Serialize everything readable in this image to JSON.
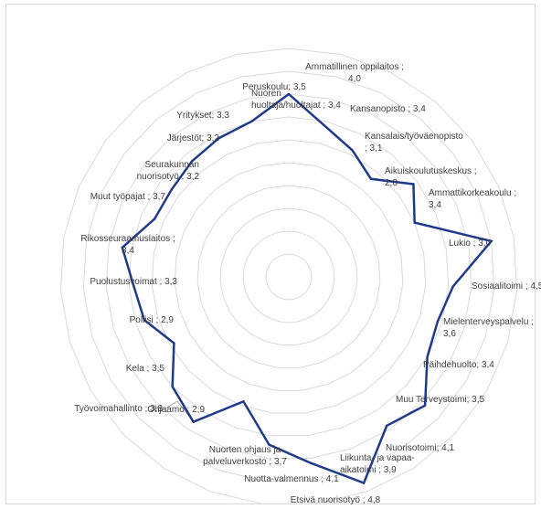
{
  "chart_data": {
    "type": "radar",
    "title": "",
    "rmin": 0,
    "rmax": 5,
    "ring_step": 0.5,
    "line_color": "#1f3a8a",
    "grid_color": "#d9d9d9",
    "categories": [
      "Ammatillinen oppilaitos ; 4,0",
      "Kansanopisto ; 3,4",
      "Kansalais/työväenopisto ; 3,1",
      "Aikuiskoulutuskeskus ; 2,8",
      "Ammattikorkeakoulu ; 3,4",
      "Lukio ; 3,0",
      "Sosiaalitoimi ; 4,5",
      "Mielenterveyspalvelu ; 3,6",
      "Päihdehuolto; 3,4",
      "Muu Terveystoimi; 3,5",
      "Nuorisotoimi; 4,1",
      "Liikunta- ja vapaa-aikatoimi ; 3,9",
      "Etsivä nuorisotyö ; 4,8",
      "Nuotta-valmennus ; 4,1",
      "Nuorten ohjaus ja palveluverkosto ; 3,7",
      "Ohjaamo ; 2,9",
      "Työvoimahallinto ; 3,8",
      "Kela ; 3,5",
      "Poliisi ; 2,9",
      "Puolustusvoimat ; 3,3",
      "Rikosseuraamuslaitos ; 3,4",
      "Muut työpajat ; 3,7",
      "Seurakunnan nuorisotyö ; 3,2",
      "Järjestöt; 3,2",
      "Yritykset; 3,3",
      "Nuoren huoltaja/huoltajat ; 3,4",
      "Peruskoulu; 3,5"
    ],
    "label_lines": [
      [
        "Ammatillinen oppilaitos ;",
        "4,0"
      ],
      [
        "Kansanopisto ; 3,4"
      ],
      [
        "Kansalais/työväenopisto",
        "; 3,1"
      ],
      [
        "Aikuiskoulutuskeskus ;",
        "2,8"
      ],
      [
        "Ammattikorkeakoulu ;",
        "3,4"
      ],
      [
        "Lukio ; 3,0"
      ],
      [
        "Sosiaalitoimi ; 4,5"
      ],
      [
        "Mielenterveyspalvelu ;",
        "3,6"
      ],
      [
        "Päihdehuolto; 3,4"
      ],
      [
        "Muu Terveystoimi; 3,5"
      ],
      [
        "Nuorisotoimi; 4,1"
      ],
      [
        "Liikunta- ja vapaa-",
        "aikatoimi ; 3,9"
      ],
      [
        "Etsivä nuorisotyö ; 4,8"
      ],
      [
        "Nuotta-valmennus ; 4,1"
      ],
      [
        "Nuorten ohjaus ja",
        "palveluverkosto ; 3,7"
      ],
      [
        "Ohjaamo ; 2,9"
      ],
      [
        "Työvoimahallinto ; 3,8"
      ],
      [
        "Kela ; 3,5"
      ],
      [
        "Poliisi ; 2,9"
      ],
      [
        "Puolustusvoimat ; 3,3"
      ],
      [
        "Rikosseuraamuslaitos ;",
        "3,4"
      ],
      [
        "Muut työpajat ; 3,7"
      ],
      [
        "Seurakunnan",
        "nuorisotyö ; 3,2"
      ],
      [
        "Järjestöt; 3,2"
      ],
      [
        "Yritykset; 3,3"
      ],
      [
        "Nuoren",
        "huoltaja/huoltajat ; 3,4"
      ],
      [
        "Peruskoulu; 3,5"
      ]
    ],
    "values": [
      4.0,
      3.4,
      3.1,
      2.8,
      3.4,
      3.0,
      4.5,
      3.6,
      3.4,
      3.5,
      4.1,
      3.9,
      4.8,
      4.1,
      3.7,
      2.9,
      3.8,
      3.5,
      2.9,
      3.3,
      3.4,
      3.7,
      3.2,
      3.2,
      3.3,
      3.4,
      3.5
    ]
  }
}
